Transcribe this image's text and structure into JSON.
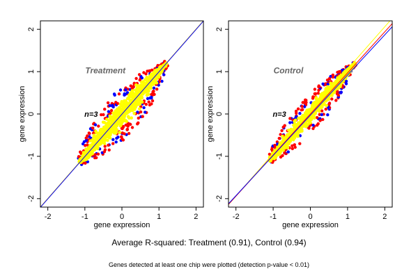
{
  "caption": "Average R-squared: Treatment (0.91), Control (0.94)",
  "footnote": "Genes detected at least one chip were plotted (detection p-value < 0.01)",
  "colors": {
    "blue": "#0000ff",
    "red": "#ff0000",
    "yellow": "#ffff00"
  },
  "chart_data": [
    {
      "type": "scatter",
      "title": "Treatment",
      "annotation": "n=3",
      "xlabel": "gene expression",
      "ylabel": "gene expression",
      "xlim": [
        -2.2,
        2.2
      ],
      "ylim": [
        -2.2,
        2.2
      ],
      "xticks": [
        -2,
        -1,
        0,
        1,
        2
      ],
      "yticks": [
        -2,
        -1,
        0,
        1,
        2
      ],
      "grid": false,
      "fit_lines": [
        {
          "color": "#ff0000",
          "slope": 1.0,
          "intercept": 0.0
        },
        {
          "color": "#ffff00",
          "slope": 1.0,
          "intercept": 0.005
        },
        {
          "color": "#0000ff",
          "slope": 1.0,
          "intercept": -0.005
        }
      ],
      "point_cloud": {
        "x_range": [
          -1.15,
          1.2
        ],
        "spread": 0.3,
        "extreme_points": 220,
        "bulk_points": 1100
      },
      "series": [
        {
          "color": "#0000ff"
        },
        {
          "color": "#ff0000"
        },
        {
          "color": "#ffff00"
        }
      ]
    },
    {
      "type": "scatter",
      "title": "Control",
      "annotation": "n=3",
      "xlabel": "gene expression",
      "ylabel": "gene expression",
      "xlim": [
        -2.2,
        2.2
      ],
      "ylim": [
        -2.2,
        2.2
      ],
      "xticks": [
        -2,
        -1,
        0,
        1,
        2
      ],
      "yticks": [
        -2,
        -1,
        0,
        1,
        2
      ],
      "grid": false,
      "fit_lines": [
        {
          "color": "#ffff00",
          "slope": 1.0,
          "intercept": 0.06
        },
        {
          "color": "#ff0000",
          "slope": 0.97,
          "intercept": 0.0
        },
        {
          "color": "#0000ff",
          "slope": 0.95,
          "intercept": -0.03
        }
      ],
      "point_cloud": {
        "x_range": [
          -1.1,
          1.2
        ],
        "spread": 0.22,
        "extreme_points": 200,
        "bulk_points": 1100
      },
      "series": [
        {
          "color": "#0000ff"
        },
        {
          "color": "#ff0000"
        },
        {
          "color": "#ffff00"
        }
      ]
    }
  ]
}
